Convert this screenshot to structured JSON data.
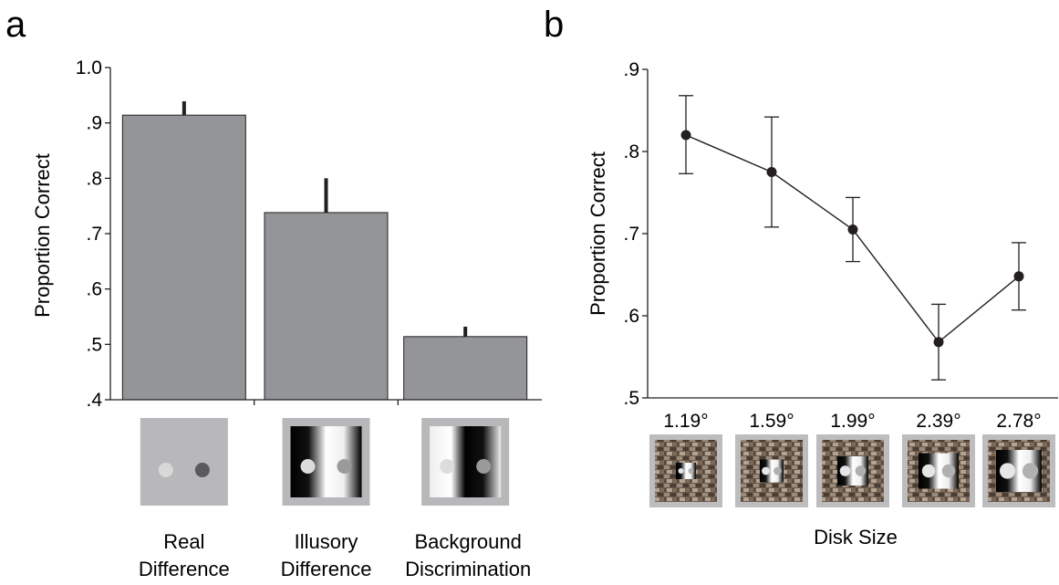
{
  "chart_data": [
    {
      "panel": "a",
      "type": "bar",
      "categories": [
        [
          "Real",
          "Difference"
        ],
        [
          "Illusory",
          "Difference"
        ],
        [
          "Background",
          "Discrimination"
        ]
      ],
      "values": [
        0.914,
        0.738,
        0.514
      ],
      "error_upper": [
        0.939,
        0.8,
        0.532
      ],
      "ylabel": "Proportion Correct",
      "ylim": [
        0.4,
        1.0
      ],
      "yticks": [
        0.4,
        0.5,
        0.6,
        0.7,
        0.8,
        0.9,
        1.0
      ],
      "ytick_labels": [
        ".4",
        ".5",
        ".6",
        ".7",
        ".8",
        ".9",
        "1.0"
      ],
      "bar_color": "#939598",
      "grid": false
    },
    {
      "panel": "b",
      "type": "line",
      "categories": [
        "1.19°",
        "1.59°",
        "1.99°",
        "2.39°",
        "2.78°"
      ],
      "values": [
        0.82,
        0.775,
        0.705,
        0.568,
        0.648
      ],
      "error_low": [
        0.773,
        0.708,
        0.666,
        0.522,
        0.607
      ],
      "error_high": [
        0.868,
        0.842,
        0.744,
        0.614,
        0.689
      ],
      "xlabel": "Disk Size",
      "ylabel": "Proportion Correct",
      "ylim": [
        0.5,
        0.9
      ],
      "yticks": [
        0.5,
        0.6,
        0.7,
        0.8,
        0.9
      ],
      "ytick_labels": [
        ".5",
        ".6",
        ".7",
        ".8",
        ".9"
      ],
      "marker_color": "#231f20",
      "grid": false
    }
  ]
}
